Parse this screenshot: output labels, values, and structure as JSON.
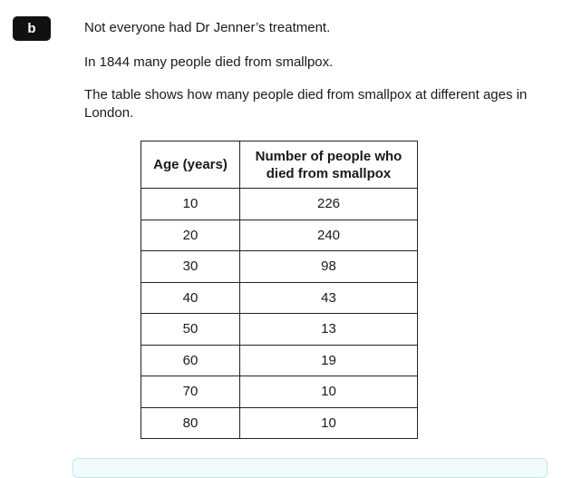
{
  "label": "b",
  "paragraphs": [
    "Not everyone had Dr Jenner’s treatment.",
    "In 1844 many people died from smallpox.",
    "The table shows how many people died from smallpox at different ages in London."
  ],
  "table": {
    "header": [
      "Age (years)",
      "Number of people who died from smallpox"
    ],
    "rows": [
      [
        10,
        226
      ],
      [
        20,
        240
      ],
      [
        30,
        98
      ],
      [
        40,
        43
      ],
      [
        50,
        13
      ],
      [
        60,
        19
      ],
      [
        70,
        10
      ],
      [
        80,
        10
      ]
    ]
  }
}
